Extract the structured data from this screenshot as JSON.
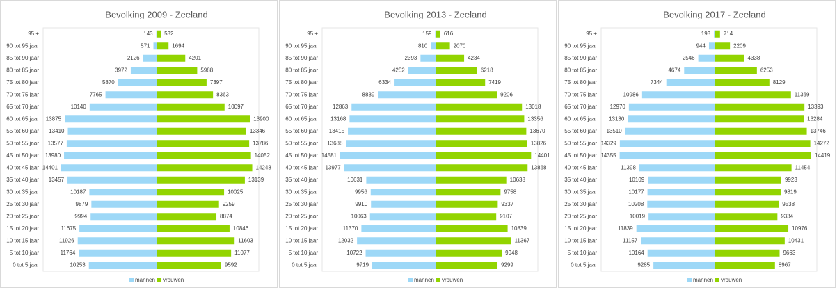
{
  "chart_data": [
    {
      "type": "pyramid",
      "title": "Bevolking 2009 - Zeeland",
      "categories": [
        "95 +",
        "90 tot 95 jaar",
        "85 tot 90 jaar",
        "80 tot 85 jaar",
        "75 tot 80 jaar",
        "70 tot 75 jaar",
        "65 tot 70 jaar",
        "60 tot 65 jaar",
        "55 tot 60 jaar",
        "50 tot 55 jaar",
        "45 tot 50 jaar",
        "40 tot 45 jaar",
        "35 tot 40 jaar",
        "30 tot 35 jaar",
        "25 tot 30 jaar",
        "20 tot 25 jaar",
        "15 tot 20 jaar",
        "10 tot 15 jaar",
        "5 tot 10 jaar",
        "0 tot 5 jaar"
      ],
      "series": [
        {
          "name": "mannen",
          "color": "#9dd8f7",
          "values": [
            143,
            571,
            2126,
            3972,
            5870,
            7765,
            10140,
            13875,
            13410,
            13577,
            13980,
            14401,
            13457,
            10187,
            9879,
            9994,
            11675,
            11926,
            11764,
            10253
          ]
        },
        {
          "name": "vrouwen",
          "color": "#92d400",
          "values": [
            532,
            1694,
            4201,
            5988,
            7397,
            8363,
            10097,
            13900,
            13346,
            13786,
            14052,
            14248,
            13139,
            10025,
            9259,
            8874,
            10846,
            11603,
            11077,
            9592
          ]
        }
      ],
      "legend": "bottom"
    },
    {
      "type": "pyramid",
      "title": "Bevolking 2013 - Zeeland",
      "categories": [
        "95 +",
        "90 tot 95 jaar",
        "85 tot 90 jaar",
        "80 tot 85 jaar",
        "75 tot 80 jaar",
        "70 tot 75 jaar",
        "65 tot 70 jaar",
        "60 tot 65 jaar",
        "55 tot 60 jaar",
        "50 tot 55 jaar",
        "45 tot 50 jaar",
        "40 tot 45 jaar",
        "35 tot 40 jaar",
        "30 tot 35 jaar",
        "25 tot 30 jaar",
        "20 tot 25 jaar",
        "15 tot 20 jaar",
        "10 tot 15 jaar",
        "5 tot 10 jaar",
        "0 tot 5 jaar"
      ],
      "series": [
        {
          "name": "mannen",
          "color": "#9dd8f7",
          "values": [
            159,
            810,
            2393,
            4252,
            6334,
            8839,
            12863,
            13168,
            13415,
            13688,
            14581,
            13977,
            10631,
            9956,
            9910,
            10063,
            11370,
            12032,
            10722,
            9719
          ]
        },
        {
          "name": "vrouwen",
          "color": "#92d400",
          "values": [
            616,
            2070,
            4234,
            6218,
            7419,
            9206,
            13018,
            13356,
            13670,
            13826,
            14401,
            13868,
            10638,
            9758,
            9337,
            9107,
            10839,
            11367,
            9948,
            9299
          ]
        }
      ],
      "legend": "bottom"
    },
    {
      "type": "pyramid",
      "title": "Bevolking 2017 - Zeeland",
      "categories": [
        "95 +",
        "90 tot 95 jaar",
        "85 tot 90 jaar",
        "80 tot 85 jaar",
        "75 tot 80 jaar",
        "70 tot 75 jaar",
        "65 tot 70 jaar",
        "60 tot 65 jaar",
        "55 tot 60 jaar",
        "50 tot 55 jaar",
        "45 tot 50 jaar",
        "40 tot 45 jaar",
        "35 tot 40 jaar",
        "30 tot 35 jaar",
        "25 tot 30 jaar",
        "20 tot 25 jaar",
        "15 tot 20 jaar",
        "10 tot 15 jaar",
        "5 tot 10 jaar",
        "0 tot 5 jaar"
      ],
      "series": [
        {
          "name": "mannen",
          "color": "#9dd8f7",
          "values": [
            193,
            944,
            2546,
            4674,
            7344,
            10986,
            12970,
            13130,
            13510,
            14329,
            14355,
            11398,
            10109,
            10177,
            10208,
            10019,
            11839,
            11157,
            10164,
            9285
          ]
        },
        {
          "name": "vrouwen",
          "color": "#92d400",
          "values": [
            714,
            2209,
            4338,
            6253,
            8129,
            11369,
            13393,
            13284,
            13746,
            14272,
            14419,
            11454,
            9923,
            9819,
            9538,
            9334,
            10976,
            10431,
            9663,
            8967
          ]
        }
      ],
      "legend": "bottom"
    }
  ]
}
